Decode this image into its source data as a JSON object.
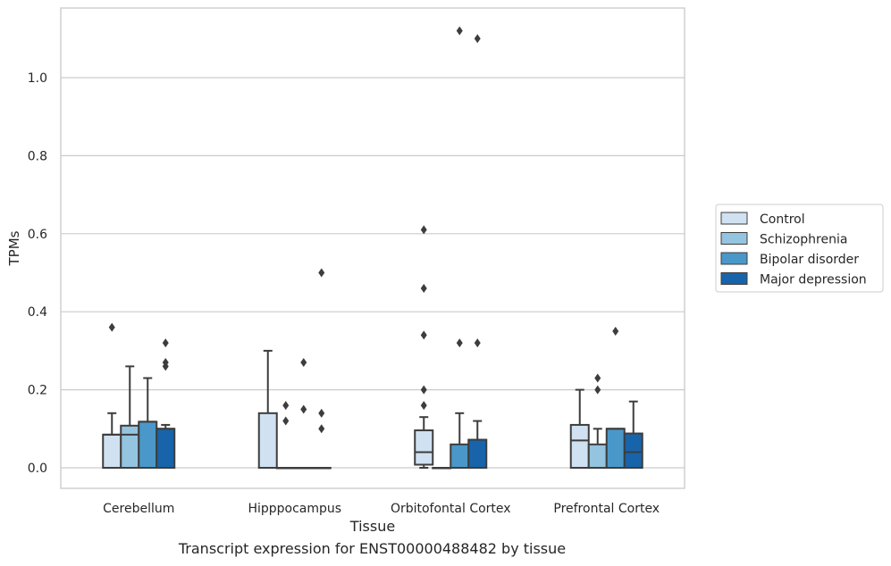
{
  "chart_data": {
    "type": "box",
    "caption": "Transcript expression for ENST00000488482 by tissue",
    "xlabel": "Tissue",
    "ylabel": "TPMs",
    "ylim": [
      -0.055,
      1.18
    ],
    "yticks": [
      "0.0",
      "0.2",
      "0.4",
      "0.6",
      "0.8",
      "1.0"
    ],
    "grid": true,
    "legend_position": "right",
    "categories": [
      "Cerebellum",
      "Hipppocampus",
      "Orbitofontal Cortex",
      "Prefrontal Cortex"
    ],
    "series": [
      {
        "name": "Control",
        "color": "#d0e1f2",
        "boxes": [
          {
            "min": 0.0,
            "q1": 0.0,
            "median": 0.085,
            "q3": 0.085,
            "max": 0.14,
            "outliers": [
              0.36
            ]
          },
          {
            "min": 0.0,
            "q1": 0.0,
            "median": 0.0,
            "q3": 0.14,
            "max": 0.3,
            "outliers": []
          },
          {
            "min": 0.0,
            "q1": 0.008,
            "median": 0.04,
            "q3": 0.096,
            "max": 0.13,
            "outliers": [
              0.16,
              0.2,
              0.34,
              0.46,
              0.61
            ]
          },
          {
            "min": 0.0,
            "q1": 0.0,
            "median": 0.07,
            "q3": 0.11,
            "max": 0.2,
            "outliers": []
          }
        ]
      },
      {
        "name": "Schizophrenia",
        "color": "#94c4df",
        "boxes": [
          {
            "min": 0.0,
            "q1": 0.0,
            "median": 0.085,
            "q3": 0.108,
            "max": 0.26,
            "outliers": []
          },
          {
            "min": 0.0,
            "q1": 0.0,
            "median": 0.0,
            "q3": 0.0,
            "max": 0.0,
            "outliers": [
              0.12,
              0.16
            ]
          },
          {
            "min": 0.0,
            "q1": 0.0,
            "median": 0.0,
            "q3": 0.0,
            "max": 0.0,
            "outliers": []
          },
          {
            "min": 0.0,
            "q1": 0.0,
            "median": 0.0,
            "q3": 0.06,
            "max": 0.1,
            "outliers": [
              0.2,
              0.23
            ]
          }
        ]
      },
      {
        "name": "Bipolar disorder",
        "color": "#4a98c9",
        "boxes": [
          {
            "min": 0.0,
            "q1": 0.0,
            "median": 0.118,
            "q3": 0.118,
            "max": 0.23,
            "outliers": []
          },
          {
            "min": 0.0,
            "q1": 0.0,
            "median": 0.0,
            "q3": 0.0,
            "max": 0.0,
            "outliers": [
              0.15,
              0.27
            ]
          },
          {
            "min": 0.0,
            "q1": 0.0,
            "median": 0.0,
            "q3": 0.06,
            "max": 0.14,
            "outliers": [
              0.32,
              1.12
            ]
          },
          {
            "min": 0.0,
            "q1": 0.0,
            "median": 0.1,
            "q3": 0.1,
            "max": 0.1,
            "outliers": [
              0.35
            ]
          }
        ]
      },
      {
        "name": "Major depression",
        "color": "#1764ab",
        "boxes": [
          {
            "min": 0.0,
            "q1": 0.0,
            "median": 0.1,
            "q3": 0.1,
            "max": 0.11,
            "outliers": [
              0.26,
              0.27,
              0.32
            ]
          },
          {
            "min": 0.0,
            "q1": 0.0,
            "median": 0.0,
            "q3": 0.0,
            "max": 0.0,
            "outliers": [
              0.1,
              0.14,
              0.5
            ]
          },
          {
            "min": 0.0,
            "q1": 0.0,
            "median": 0.0,
            "q3": 0.072,
            "max": 0.12,
            "outliers": [
              0.32,
              1.1
            ]
          },
          {
            "min": 0.0,
            "q1": 0.0,
            "median": 0.04,
            "q3": 0.088,
            "max": 0.17,
            "outliers": []
          }
        ]
      }
    ]
  }
}
